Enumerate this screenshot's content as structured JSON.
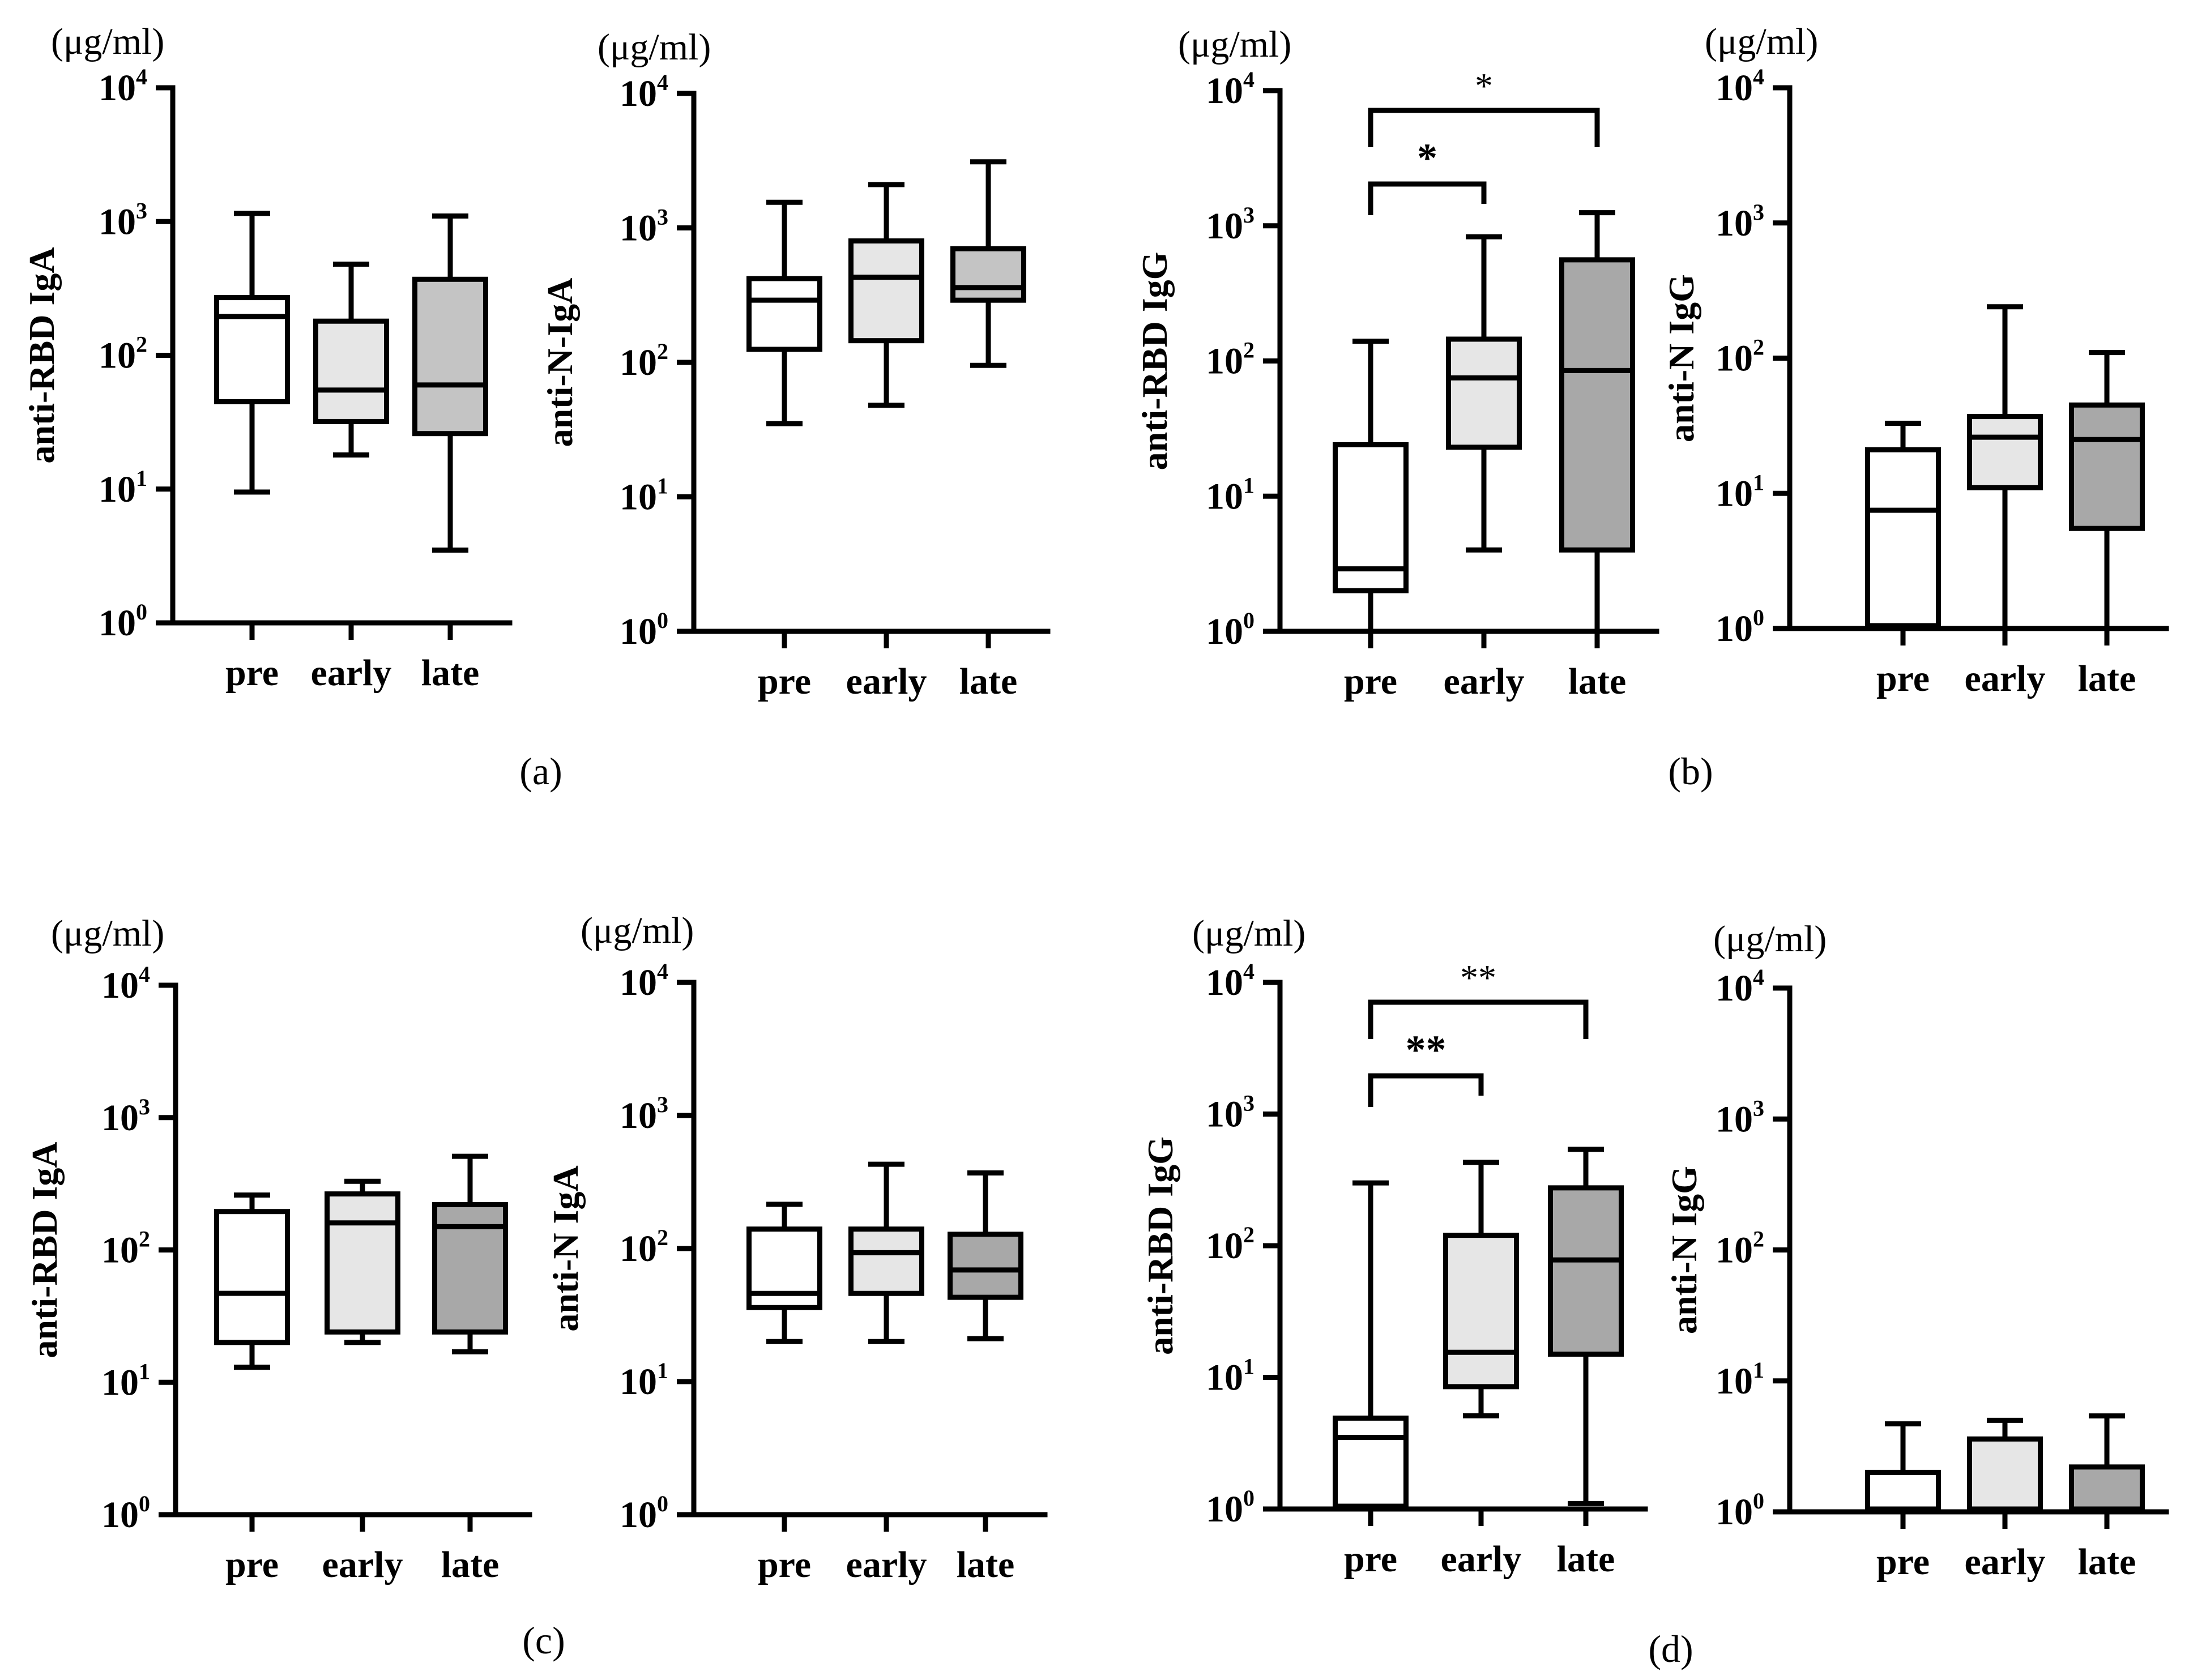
{
  "chart_data": [
    {
      "panel": "a",
      "title": "",
      "type": "box",
      "ylabel": "anti-RBD  IgA",
      "unit": "(μg/ml)",
      "yscale": "log",
      "ylim": [
        1,
        10000
      ],
      "yticks": [
        {
          "base": "10",
          "exp": "0"
        },
        {
          "base": "10",
          "exp": "1"
        },
        {
          "base": "10",
          "exp": "2"
        },
        {
          "base": "10",
          "exp": "3"
        },
        {
          "base": "10",
          "exp": "4"
        }
      ],
      "categories": [
        "pre",
        "early",
        "late"
      ],
      "colors": [
        "#ffffff",
        "#e6e6e6",
        "#c4c4c4"
      ],
      "boxes": [
        {
          "min": 9.5,
          "q1": 45,
          "median": 195,
          "q3": 270,
          "max": 1150
        },
        {
          "min": 18,
          "q1": 32,
          "median": 55,
          "q3": 180,
          "max": 480
        },
        {
          "min": 3.5,
          "q1": 26,
          "median": 60,
          "q3": 370,
          "max": 1100
        }
      ],
      "significance": []
    },
    {
      "panel": "a",
      "title": "",
      "type": "box",
      "ylabel": "anti-N-IgA",
      "unit": "(μg/ml)",
      "yscale": "log",
      "ylim": [
        1,
        10000
      ],
      "yticks": [
        {
          "base": "10",
          "exp": "0"
        },
        {
          "base": "10",
          "exp": "1"
        },
        {
          "base": "10",
          "exp": "2"
        },
        {
          "base": "10",
          "exp": "3"
        },
        {
          "base": "10",
          "exp": "4"
        }
      ],
      "categories": [
        "pre",
        "early",
        "late"
      ],
      "colors": [
        "#ffffff",
        "#e6e6e6",
        "#c4c4c4"
      ],
      "boxes": [
        {
          "min": 35,
          "q1": 125,
          "median": 290,
          "q3": 420,
          "max": 1550
        },
        {
          "min": 48,
          "q1": 145,
          "median": 430,
          "q3": 800,
          "max": 2100
        },
        {
          "min": 95,
          "q1": 290,
          "median": 360,
          "q3": 700,
          "max": 3100
        }
      ],
      "significance": []
    },
    {
      "panel": "b",
      "title": "",
      "type": "box",
      "ylabel": "anti-RBD IgG",
      "unit": "(μg/ml)",
      "yscale": "log",
      "ylim": [
        1,
        10000
      ],
      "yticks": [
        {
          "base": "10",
          "exp": "0"
        },
        {
          "base": "10",
          "exp": "1"
        },
        {
          "base": "10",
          "exp": "2"
        },
        {
          "base": "10",
          "exp": "3"
        },
        {
          "base": "10",
          "exp": "4"
        }
      ],
      "categories": [
        "pre",
        "early",
        "late"
      ],
      "colors": [
        "#ffffff",
        "#e6e6e6",
        "#a8a8a8"
      ],
      "boxes": [
        {
          "min": 1,
          "q1": 2,
          "median": 2.9,
          "q3": 24,
          "max": 140
        },
        {
          "min": 4,
          "q1": 23,
          "median": 75,
          "q3": 145,
          "max": 830
        },
        {
          "min": 1,
          "q1": 4,
          "median": 85,
          "q3": 560,
          "max": 1250
        }
      ],
      "significance": [
        {
          "from": 0,
          "to": 1,
          "label": "*",
          "bold": true,
          "level": 1
        },
        {
          "from": 0,
          "to": 2,
          "label": "*",
          "bold": false,
          "level": 2
        }
      ]
    },
    {
      "panel": "b",
      "title": "",
      "type": "box",
      "ylabel": "anti-N IgG",
      "unit": "(μg/ml)",
      "yscale": "log",
      "ylim": [
        1,
        10000
      ],
      "yticks": [
        {
          "base": "10",
          "exp": "0"
        },
        {
          "base": "10",
          "exp": "1"
        },
        {
          "base": "10",
          "exp": "2"
        },
        {
          "base": "10",
          "exp": "3"
        },
        {
          "base": "10",
          "exp": "4"
        }
      ],
      "categories": [
        "pre",
        "early",
        "late"
      ],
      "colors": [
        "#ffffff",
        "#e6e6e6",
        "#a8a8a8"
      ],
      "boxes": [
        {
          "min": 1,
          "q1": 1.05,
          "median": 7.5,
          "q3": 21,
          "max": 33
        },
        {
          "min": 1,
          "q1": 11,
          "median": 26,
          "q3": 37,
          "max": 240
        },
        {
          "min": 1,
          "q1": 5.5,
          "median": 25,
          "q3": 45,
          "max": 110
        }
      ],
      "significance": []
    },
    {
      "panel": "c",
      "title": "",
      "type": "box",
      "ylabel": "anti-RBD IgA",
      "unit": "(μg/ml)",
      "yscale": "log",
      "ylim": [
        1,
        10000
      ],
      "yticks": [
        {
          "base": "10",
          "exp": "0"
        },
        {
          "base": "10",
          "exp": "1"
        },
        {
          "base": "10",
          "exp": "2"
        },
        {
          "base": "10",
          "exp": "3"
        },
        {
          "base": "10",
          "exp": "4"
        }
      ],
      "categories": [
        "pre",
        "early",
        "late"
      ],
      "colors": [
        "#ffffff",
        "#e6e6e6",
        "#a8a8a8"
      ],
      "boxes": [
        {
          "min": 13,
          "q1": 20,
          "median": 47,
          "q3": 195,
          "max": 260
        },
        {
          "min": 20,
          "q1": 24,
          "median": 160,
          "q3": 265,
          "max": 330
        },
        {
          "min": 17,
          "q1": 24,
          "median": 150,
          "q3": 220,
          "max": 510
        }
      ],
      "significance": []
    },
    {
      "panel": "c",
      "title": "",
      "type": "box",
      "ylabel": "anti-N IgA",
      "unit": "(μg/ml)",
      "yscale": "log",
      "ylim": [
        1,
        10000
      ],
      "yticks": [
        {
          "base": "10",
          "exp": "0"
        },
        {
          "base": "10",
          "exp": "1"
        },
        {
          "base": "10",
          "exp": "2"
        },
        {
          "base": "10",
          "exp": "3"
        },
        {
          "base": "10",
          "exp": "4"
        }
      ],
      "categories": [
        "pre",
        "early",
        "late"
      ],
      "colors": [
        "#ffffff",
        "#e6e6e6",
        "#a8a8a8"
      ],
      "boxes": [
        {
          "min": 20,
          "q1": 36,
          "median": 46,
          "q3": 140,
          "max": 215
        },
        {
          "min": 20,
          "q1": 46,
          "median": 93,
          "q3": 140,
          "max": 430
        },
        {
          "min": 21,
          "q1": 43,
          "median": 69,
          "q3": 128,
          "max": 370
        }
      ],
      "significance": []
    },
    {
      "panel": "d",
      "title": "",
      "type": "box",
      "ylabel": "anti-RBD IgG",
      "unit": "(μg/ml)",
      "yscale": "log",
      "ylim": [
        1,
        10000
      ],
      "yticks": [
        {
          "base": "10",
          "exp": "0"
        },
        {
          "base": "10",
          "exp": "1"
        },
        {
          "base": "10",
          "exp": "2"
        },
        {
          "base": "10",
          "exp": "3"
        },
        {
          "base": "10",
          "exp": "4"
        }
      ],
      "categories": [
        "pre",
        "early",
        "late"
      ],
      "colors": [
        "#ffffff",
        "#e6e6e6",
        "#a8a8a8"
      ],
      "boxes": [
        {
          "min": 1,
          "q1": 1.05,
          "median": 3.5,
          "q3": 4.9,
          "max": 300
        },
        {
          "min": 5.1,
          "q1": 8.5,
          "median": 15.5,
          "q3": 120,
          "max": 430
        },
        {
          "min": 1.1,
          "q1": 15,
          "median": 78,
          "q3": 275,
          "max": 540
        }
      ],
      "significance": [
        {
          "from": 0,
          "to": 1,
          "label": "**",
          "bold": true,
          "level": 1
        },
        {
          "from": 0,
          "to": 2,
          "label": "**",
          "bold": false,
          "level": 2
        }
      ]
    },
    {
      "panel": "d",
      "title": "",
      "type": "box",
      "ylabel": "anti-N IgG",
      "unit": "(μg/ml)",
      "yscale": "log",
      "ylim": [
        1,
        10000
      ],
      "yticks": [
        {
          "base": "10",
          "exp": "0"
        },
        {
          "base": "10",
          "exp": "1"
        },
        {
          "base": "10",
          "exp": "2"
        },
        {
          "base": "10",
          "exp": "3"
        },
        {
          "base": "10",
          "exp": "4"
        }
      ],
      "categories": [
        "pre",
        "early",
        "late"
      ],
      "colors": [
        "#ffffff",
        "#e6e6e6",
        "#a8a8a8"
      ],
      "boxes": [
        {
          "min": 1,
          "q1": 1.05,
          "median": 1.05,
          "q3": 2,
          "max": 4.7
        },
        {
          "min": 1,
          "q1": 1.05,
          "median": 1.05,
          "q3": 3.6,
          "max": 5
        },
        {
          "min": 1,
          "q1": 1.05,
          "median": 1.05,
          "q3": 2.2,
          "max": 5.4
        }
      ],
      "significance": []
    }
  ],
  "panel_labels": [
    "(a)",
    "(b)",
    "(c)",
    "(d)"
  ]
}
